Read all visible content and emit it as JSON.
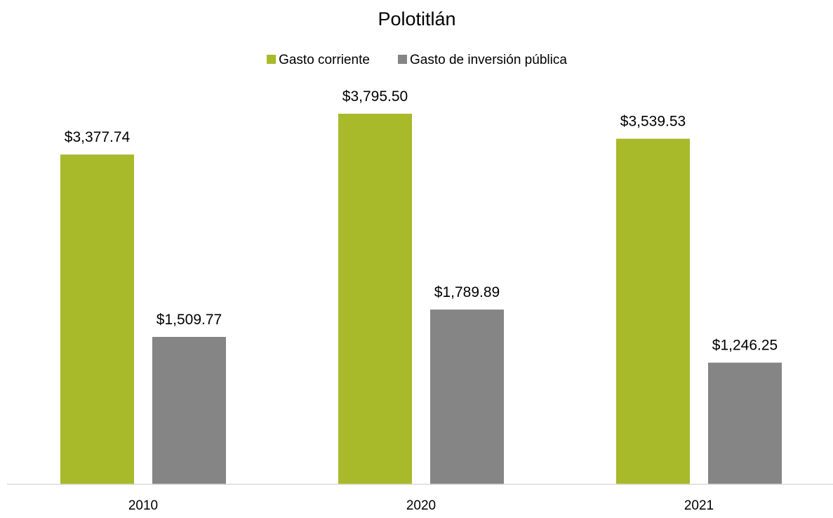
{
  "chart_data": {
    "type": "bar",
    "title": "Polotitlán",
    "categories": [
      "2010",
      "2020",
      "2021"
    ],
    "series": [
      {
        "name": "Gasto corriente",
        "values": [
          3377.74,
          3795.5,
          3539.53
        ],
        "labels": [
          "$3,377.74",
          "$3,795.50",
          "$3,539.53"
        ],
        "color": "#A8B92A"
      },
      {
        "name": "Gasto de inversión pública",
        "values": [
          1509.77,
          1789.89,
          1246.25
        ],
        "labels": [
          "$1,509.77",
          "$1,789.89",
          "$1,246.25"
        ],
        "color": "#858585"
      }
    ],
    "legend": "top",
    "grid": false,
    "y_axis_visible": false,
    "ylim": [
      0,
      4000
    ],
    "axis_color": "#D9D9D9"
  }
}
